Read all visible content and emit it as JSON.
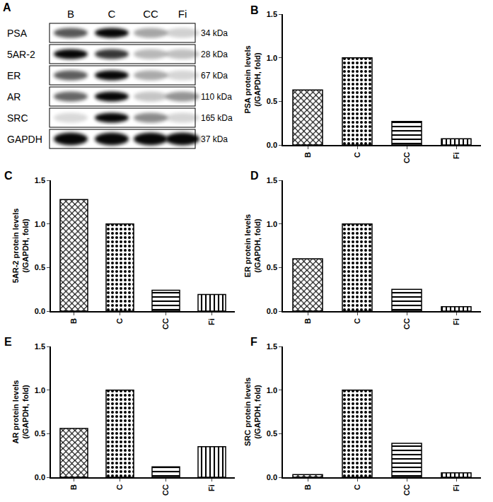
{
  "blot": {
    "label": "A",
    "lanes": [
      "B",
      "C",
      "CC",
      "Fi"
    ],
    "rows": [
      {
        "protein": "PSA",
        "size": "34 kDa"
      },
      {
        "protein": "5AR-2",
        "size": "28 kDa"
      },
      {
        "protein": "ER",
        "size": "67 kDa"
      },
      {
        "protein": "AR",
        "size": "110 kDa"
      },
      {
        "protein": "SRC",
        "size": "165 kDa"
      },
      {
        "protein": "GAPDH",
        "size": "37 kDa"
      }
    ]
  },
  "chart_data": [
    {
      "type": "bar",
      "label": "B",
      "ylabel": [
        "PSA protein levels",
        "(/GAPDH, fold)"
      ],
      "categories": [
        "B",
        "C",
        "CC",
        "Fi"
      ],
      "values": [
        0.63,
        1.0,
        0.27,
        0.07
      ],
      "color": "#000000",
      "ylim": [
        0,
        1.5
      ],
      "yticks": [
        {
          "value": 0,
          "label": "0.0"
        },
        {
          "value": 0.5,
          "label": "0.5"
        },
        {
          "value": 1,
          "label": "1.0"
        },
        {
          "value": 1.5,
          "label": "1.5"
        }
      ],
      "grid": false
    },
    {
      "type": "bar",
      "label": "C",
      "ylabel": [
        "5AR-2 protein levels",
        "(/GAPDH, fold)"
      ],
      "categories": [
        "B",
        "C",
        "CC",
        "Fi"
      ],
      "values": [
        1.28,
        1.0,
        0.24,
        0.19
      ],
      "color": "#000000",
      "ylim": [
        0,
        1.5
      ],
      "yticks": [
        {
          "value": 0,
          "label": "0.0"
        },
        {
          "value": 0.5,
          "label": "0.5"
        },
        {
          "value": 1,
          "label": "1.0"
        },
        {
          "value": 1.5,
          "label": "1.5"
        }
      ],
      "grid": false
    },
    {
      "type": "bar",
      "label": "D",
      "ylabel": [
        "ER protein levels",
        "(/GAPDH, fold)"
      ],
      "categories": [
        "B",
        "C",
        "CC",
        "Fi"
      ],
      "values": [
        0.6,
        1.0,
        0.25,
        0.05
      ],
      "color": "#000000",
      "ylim": [
        0,
        1.5
      ],
      "yticks": [
        {
          "value": 0,
          "label": "0.0"
        },
        {
          "value": 0.5,
          "label": "0.5"
        },
        {
          "value": 1,
          "label": "1.0"
        },
        {
          "value": 1.5,
          "label": "1.5"
        }
      ],
      "grid": false
    },
    {
      "type": "bar",
      "label": "E",
      "ylabel": [
        "AR protein levels",
        "(/GAPDH, fold)"
      ],
      "categories": [
        "B",
        "C",
        "CC",
        "Fi"
      ],
      "values": [
        0.56,
        1.0,
        0.12,
        0.35
      ],
      "color": "#000000",
      "ylim": [
        0,
        1.5
      ],
      "yticks": [
        {
          "value": 0,
          "label": "0.0"
        },
        {
          "value": 0.5,
          "label": "0.5"
        },
        {
          "value": 1,
          "label": "1.0"
        },
        {
          "value": 1.5,
          "label": "1.5"
        }
      ],
      "grid": false
    },
    {
      "type": "bar",
      "label": "F",
      "ylabel": [
        "SRC protein levels",
        "(/GAPDH, fold)"
      ],
      "categories": [
        "B",
        "C",
        "CC",
        "Fi"
      ],
      "values": [
        0.03,
        1.0,
        0.39,
        0.05
      ],
      "color": "#000000",
      "ylim": [
        0,
        1.5
      ],
      "yticks": [
        {
          "value": 0,
          "label": "0.0"
        },
        {
          "value": 0.5,
          "label": "0.5"
        },
        {
          "value": 1,
          "label": "1.0"
        },
        {
          "value": 1.5,
          "label": "1.5"
        }
      ],
      "grid": false
    }
  ]
}
